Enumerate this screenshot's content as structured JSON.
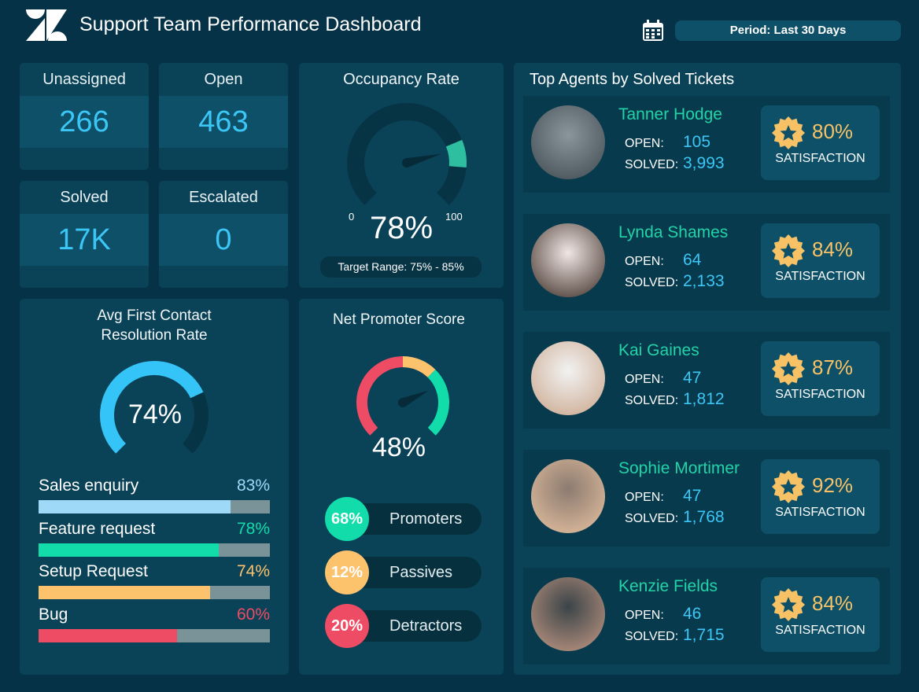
{
  "header": {
    "title": "Support Team Performance Dashboard",
    "period": "Period: Last 30 Days",
    "logo": "zendesk-logo",
    "calendar_icon": "calendar-icon"
  },
  "tiles": [
    {
      "label": "Unassigned",
      "value": "266"
    },
    {
      "label": "Open",
      "value": "463"
    },
    {
      "label": "Solved",
      "value": "17K"
    },
    {
      "label": "Escalated",
      "value": "0"
    }
  ],
  "occupancy": {
    "title": "Occupancy Rate",
    "value": 78,
    "value_label": "78%",
    "min": "0",
    "max": "100",
    "target": "Target Range: 75% - 85%",
    "target_range": [
      75,
      85
    ],
    "band_color": "#2ebfa0"
  },
  "fcr": {
    "title_line1": "Avg First Contact",
    "title_line2": "Resolution Rate",
    "value": 74,
    "value_label": "74%",
    "color": "#35c4f7",
    "items": [
      {
        "label": "Sales enquiry",
        "value": 83,
        "pct": "83%",
        "color": "#9ed9f8"
      },
      {
        "label": "Feature request",
        "value": 78,
        "pct": "78%",
        "color": "#11dcaa"
      },
      {
        "label": "Setup Request",
        "value": 74,
        "pct": "74%",
        "color": "#fcc26c"
      },
      {
        "label": "Bug",
        "value": 60,
        "pct": "60%",
        "color": "#ee4c64"
      }
    ]
  },
  "nps": {
    "title": "Net Promoter Score",
    "value": 48,
    "value_label": "48%",
    "range": [
      -100,
      100
    ],
    "segments": [
      {
        "from": -100,
        "to": 0,
        "color": "#ee4c64"
      },
      {
        "from": 0,
        "to": 33,
        "color": "#fcc26c"
      },
      {
        "from": 33,
        "to": 100,
        "color": "#11dcaa"
      }
    ],
    "breakdown": [
      {
        "pct": "68%",
        "label": "Promoters",
        "color": "#11dcaa"
      },
      {
        "pct": "12%",
        "label": "Passives",
        "color": "#fcc26c"
      },
      {
        "pct": "20%",
        "label": "Detractors",
        "color": "#ee4c64"
      }
    ]
  },
  "agents": {
    "title": "Top Agents by Solved Tickets",
    "open_label": "OPEN:",
    "solved_label": "SOLVED:",
    "sat_label": "SATISFACTION",
    "list": [
      {
        "name": "Tanner Hodge",
        "open": "105",
        "solved": "3,993",
        "satisfaction": "80%"
      },
      {
        "name": "Lynda Shames",
        "open": "64",
        "solved": "2,133",
        "satisfaction": "84%"
      },
      {
        "name": "Kai Gaines",
        "open": "47",
        "solved": "1,812",
        "satisfaction": "87%"
      },
      {
        "name": "Sophie Mortimer",
        "open": "47",
        "solved": "1,768",
        "satisfaction": "92%"
      },
      {
        "name": "Kenzie Fields",
        "open": "46",
        "solved": "1,715",
        "satisfaction": "84%"
      }
    ]
  }
}
